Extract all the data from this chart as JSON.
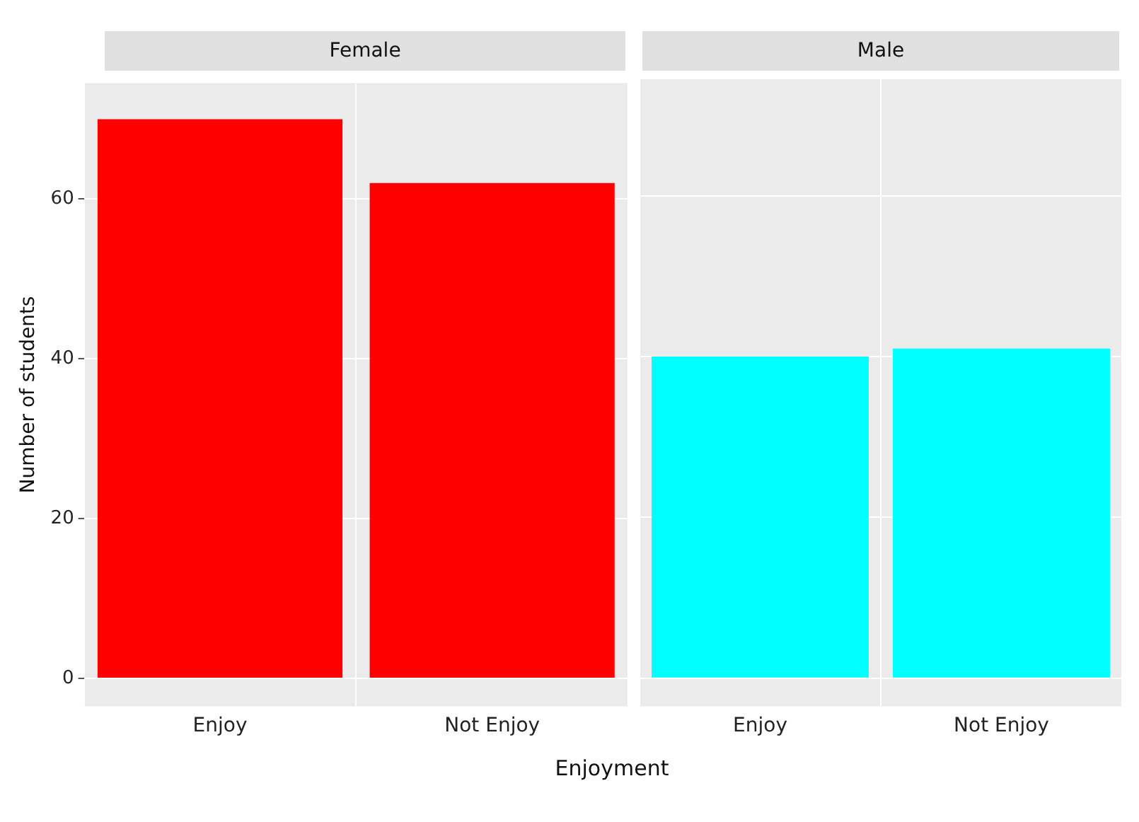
{
  "chart_data": [
    {
      "type": "bar",
      "title": "Female",
      "xlabel": "Enjoyment",
      "ylabel": "Number of students",
      "categories": [
        "Enjoy",
        "Not Enjoy"
      ],
      "values": [
        70,
        62
      ],
      "color": "#ff0000",
      "ylim": [
        -3.5,
        74.5
      ],
      "yticks": [
        0,
        20,
        40,
        60
      ],
      "grid": true,
      "legend": false
    },
    {
      "type": "bar",
      "title": "Male",
      "categories": [
        "Enjoy",
        "Not Enjoy"
      ],
      "values": [
        40,
        41
      ],
      "color": "#00ffff",
      "ylim": [
        -3.5,
        74.5
      ],
      "yticks": [
        0,
        20,
        40,
        60
      ],
      "grid": true,
      "legend": false,
      "tick_labels": "x"
    }
  ]
}
